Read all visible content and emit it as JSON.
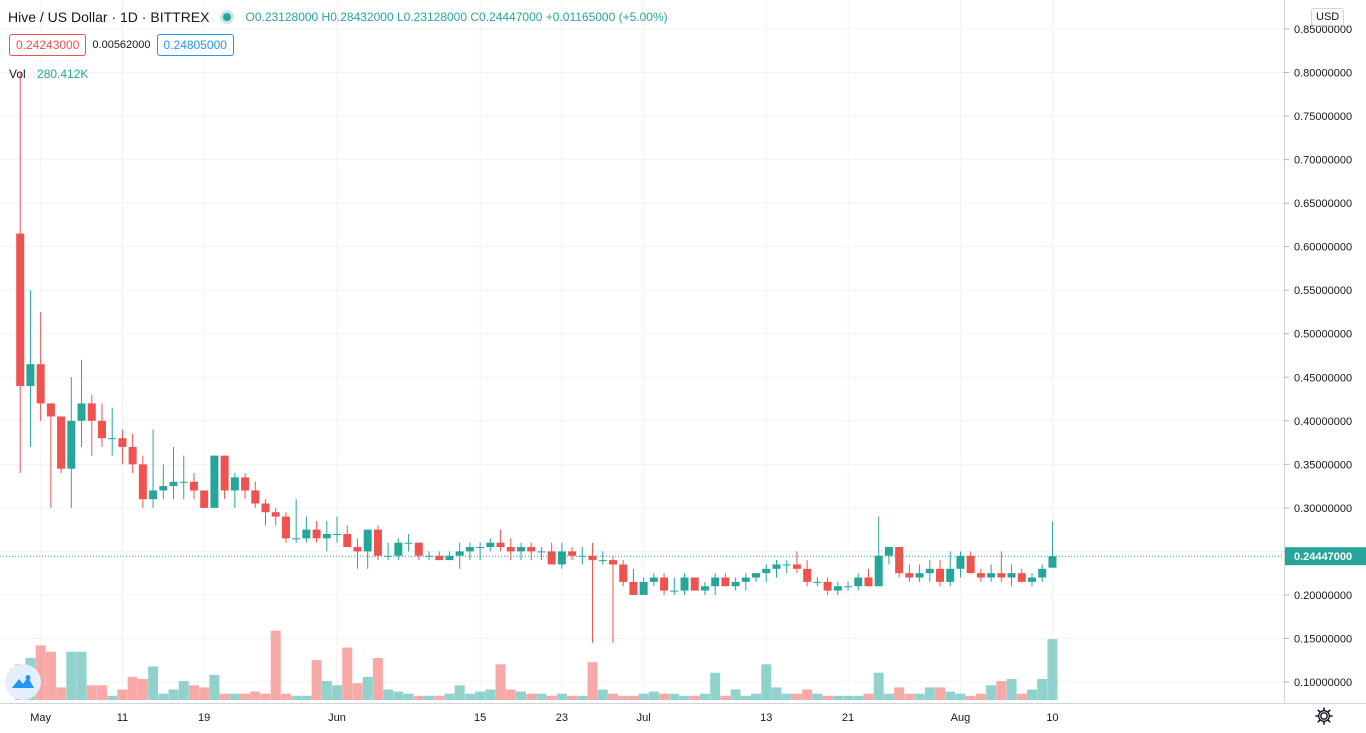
{
  "header": {
    "symbol_title": "Hive / US Dollar · 1D · BITTREX",
    "ohlc": "O0.23128000 H0.28432000 L0.23128000 C0.24447000 +0.01165000 (+5.00%)",
    "bid": "0.24243000",
    "spread": "0.00562000",
    "ask": "0.24805000",
    "vol_label": "Vol",
    "vol_value": "280.412K",
    "currency_button": "USD",
    "last_price_label": "0.24447000"
  },
  "colors": {
    "up": "#26a69a",
    "down": "#ef5350",
    "grid": "#f0f3fa",
    "axis": "#131722"
  },
  "icons": {
    "logo": "tradingview-logo-icon",
    "settings": "gear-icon"
  },
  "chart_data": {
    "type": "candlestick",
    "price_axis": {
      "ylim": [
        0.07,
        0.86
      ],
      "ticks": [
        0.85,
        0.8,
        0.75,
        0.7,
        0.65,
        0.6,
        0.55,
        0.5,
        0.45,
        0.4,
        0.35,
        0.3,
        0.25,
        0.2,
        0.15,
        0.1
      ],
      "tick_labels": [
        "0.85000000",
        "0.80000000",
        "0.75000000",
        "0.70000000",
        "0.65000000",
        "0.60000000",
        "0.55000000",
        "0.50000000",
        "0.45000000",
        "0.40000000",
        "0.35000000",
        "0.30000000",
        "0.25000000",
        "0.20000000",
        "0.15000000",
        "0.10000000"
      ]
    },
    "last_price": 0.24447,
    "time_axis": {
      "labels": [
        {
          "label": "May",
          "day": 3
        },
        {
          "label": "11",
          "day": 11
        },
        {
          "label": "19",
          "day": 19
        },
        {
          "label": "Jun",
          "day": 32
        },
        {
          "label": "15",
          "day": 46
        },
        {
          "label": "23",
          "day": 54
        },
        {
          "label": "Jul",
          "day": 62
        },
        {
          "label": "13",
          "day": 74
        },
        {
          "label": "21",
          "day": 82
        },
        {
          "label": "Aug",
          "day": 93
        },
        {
          "label": "10",
          "day": 102
        }
      ],
      "note": "day index counted from Apr 29"
    },
    "candles": [
      [
        0.615,
        0.8,
        0.34,
        0.44,
        0.115
      ],
      [
        0.44,
        0.55,
        0.37,
        0.465,
        0.13
      ],
      [
        0.465,
        0.525,
        0.4,
        0.42,
        0.16
      ],
      [
        0.42,
        0.42,
        0.3,
        0.405,
        0.145
      ],
      [
        0.405,
        0.405,
        0.34,
        0.345,
        0.06
      ],
      [
        0.345,
        0.45,
        0.3,
        0.4,
        0.145
      ],
      [
        0.4,
        0.47,
        0.37,
        0.42,
        0.145
      ],
      [
        0.42,
        0.43,
        0.36,
        0.4,
        0.065
      ],
      [
        0.4,
        0.42,
        0.37,
        0.38,
        0.065
      ],
      [
        0.38,
        0.415,
        0.36,
        0.38,
        0.04
      ],
      [
        0.38,
        0.39,
        0.35,
        0.37,
        0.055
      ],
      [
        0.37,
        0.385,
        0.34,
        0.35,
        0.085
      ],
      [
        0.35,
        0.36,
        0.3,
        0.31,
        0.08
      ],
      [
        0.31,
        0.39,
        0.3,
        0.32,
        0.11
      ],
      [
        0.32,
        0.35,
        0.31,
        0.325,
        0.045
      ],
      [
        0.325,
        0.37,
        0.31,
        0.33,
        0.055
      ],
      [
        0.33,
        0.36,
        0.31,
        0.33,
        0.075
      ],
      [
        0.33,
        0.34,
        0.31,
        0.32,
        0.065
      ],
      [
        0.32,
        0.32,
        0.3,
        0.3,
        0.06
      ],
      [
        0.3,
        0.36,
        0.3,
        0.36,
        0.09
      ],
      [
        0.36,
        0.36,
        0.31,
        0.32,
        0.045
      ],
      [
        0.32,
        0.34,
        0.3,
        0.335,
        0.045
      ],
      [
        0.335,
        0.34,
        0.31,
        0.32,
        0.045
      ],
      [
        0.32,
        0.33,
        0.3,
        0.305,
        0.05
      ],
      [
        0.305,
        0.31,
        0.28,
        0.295,
        0.045
      ],
      [
        0.295,
        0.3,
        0.28,
        0.29,
        0.195
      ],
      [
        0.29,
        0.295,
        0.26,
        0.265,
        0.045
      ],
      [
        0.265,
        0.31,
        0.26,
        0.265,
        0.04
      ],
      [
        0.265,
        0.29,
        0.26,
        0.275,
        0.04
      ],
      [
        0.275,
        0.285,
        0.26,
        0.265,
        0.125
      ],
      [
        0.265,
        0.285,
        0.25,
        0.27,
        0.075
      ],
      [
        0.27,
        0.29,
        0.26,
        0.27,
        0.065
      ],
      [
        0.27,
        0.28,
        0.26,
        0.255,
        0.155
      ],
      [
        0.255,
        0.265,
        0.23,
        0.25,
        0.07
      ],
      [
        0.25,
        0.275,
        0.23,
        0.275,
        0.085
      ],
      [
        0.275,
        0.28,
        0.24,
        0.245,
        0.13
      ],
      [
        0.245,
        0.26,
        0.24,
        0.245,
        0.055
      ],
      [
        0.245,
        0.265,
        0.24,
        0.26,
        0.05
      ],
      [
        0.26,
        0.27,
        0.25,
        0.26,
        0.045
      ],
      [
        0.26,
        0.26,
        0.24,
        0.245,
        0.04
      ],
      [
        0.245,
        0.25,
        0.24,
        0.245,
        0.04
      ],
      [
        0.245,
        0.25,
        0.24,
        0.24,
        0.04
      ],
      [
        0.24,
        0.25,
        0.24,
        0.245,
        0.045
      ],
      [
        0.245,
        0.26,
        0.23,
        0.25,
        0.065
      ],
      [
        0.25,
        0.26,
        0.24,
        0.255,
        0.045
      ],
      [
        0.255,
        0.26,
        0.24,
        0.255,
        0.05
      ],
      [
        0.255,
        0.265,
        0.25,
        0.26,
        0.055
      ],
      [
        0.26,
        0.275,
        0.25,
        0.255,
        0.115
      ],
      [
        0.255,
        0.265,
        0.24,
        0.25,
        0.055
      ],
      [
        0.25,
        0.26,
        0.24,
        0.255,
        0.05
      ],
      [
        0.255,
        0.26,
        0.24,
        0.25,
        0.045
      ],
      [
        0.25,
        0.255,
        0.24,
        0.25,
        0.045
      ],
      [
        0.25,
        0.26,
        0.24,
        0.235,
        0.04
      ],
      [
        0.235,
        0.26,
        0.23,
        0.25,
        0.045
      ],
      [
        0.25,
        0.255,
        0.24,
        0.245,
        0.04
      ],
      [
        0.245,
        0.255,
        0.235,
        0.245,
        0.04
      ],
      [
        0.245,
        0.26,
        0.145,
        0.24,
        0.12
      ],
      [
        0.24,
        0.25,
        0.235,
        0.24,
        0.055
      ],
      [
        0.24,
        0.245,
        0.145,
        0.235,
        0.045
      ],
      [
        0.235,
        0.24,
        0.21,
        0.215,
        0.04
      ],
      [
        0.215,
        0.23,
        0.2,
        0.2,
        0.04
      ],
      [
        0.2,
        0.22,
        0.2,
        0.215,
        0.045
      ],
      [
        0.215,
        0.225,
        0.21,
        0.22,
        0.05
      ],
      [
        0.22,
        0.225,
        0.2,
        0.205,
        0.045
      ],
      [
        0.205,
        0.22,
        0.2,
        0.205,
        0.045
      ],
      [
        0.205,
        0.225,
        0.2,
        0.22,
        0.04
      ],
      [
        0.22,
        0.22,
        0.205,
        0.205,
        0.04
      ],
      [
        0.205,
        0.215,
        0.2,
        0.21,
        0.045
      ],
      [
        0.21,
        0.225,
        0.2,
        0.22,
        0.095
      ],
      [
        0.22,
        0.225,
        0.21,
        0.21,
        0.04
      ],
      [
        0.21,
        0.22,
        0.205,
        0.215,
        0.055
      ],
      [
        0.215,
        0.225,
        0.205,
        0.22,
        0.04
      ],
      [
        0.22,
        0.225,
        0.215,
        0.225,
        0.045
      ],
      [
        0.225,
        0.235,
        0.215,
        0.23,
        0.115
      ],
      [
        0.23,
        0.24,
        0.22,
        0.235,
        0.06
      ],
      [
        0.235,
        0.24,
        0.225,
        0.235,
        0.045
      ],
      [
        0.235,
        0.25,
        0.225,
        0.23,
        0.045
      ],
      [
        0.23,
        0.24,
        0.21,
        0.215,
        0.055
      ],
      [
        0.215,
        0.22,
        0.21,
        0.215,
        0.045
      ],
      [
        0.215,
        0.22,
        0.2,
        0.205,
        0.04
      ],
      [
        0.205,
        0.215,
        0.2,
        0.21,
        0.04
      ],
      [
        0.21,
        0.215,
        0.205,
        0.21,
        0.04
      ],
      [
        0.21,
        0.225,
        0.205,
        0.22,
        0.04
      ],
      [
        0.22,
        0.23,
        0.21,
        0.21,
        0.045
      ],
      [
        0.21,
        0.29,
        0.21,
        0.245,
        0.095
      ],
      [
        0.245,
        0.255,
        0.235,
        0.255,
        0.045
      ],
      [
        0.255,
        0.255,
        0.22,
        0.225,
        0.06
      ],
      [
        0.225,
        0.235,
        0.215,
        0.22,
        0.045
      ],
      [
        0.22,
        0.235,
        0.215,
        0.225,
        0.045
      ],
      [
        0.225,
        0.24,
        0.215,
        0.23,
        0.06
      ],
      [
        0.23,
        0.24,
        0.21,
        0.215,
        0.06
      ],
      [
        0.215,
        0.25,
        0.21,
        0.23,
        0.05
      ],
      [
        0.23,
        0.25,
        0.22,
        0.245,
        0.045
      ],
      [
        0.245,
        0.25,
        0.23,
        0.225,
        0.04
      ],
      [
        0.225,
        0.23,
        0.215,
        0.22,
        0.045
      ],
      [
        0.22,
        0.235,
        0.215,
        0.225,
        0.065
      ],
      [
        0.225,
        0.25,
        0.215,
        0.22,
        0.075
      ],
      [
        0.22,
        0.235,
        0.21,
        0.225,
        0.08
      ],
      [
        0.225,
        0.23,
        0.215,
        0.215,
        0.045
      ],
      [
        0.215,
        0.225,
        0.21,
        0.22,
        0.055
      ],
      [
        0.22,
        0.235,
        0.215,
        0.23,
        0.08
      ],
      [
        0.23128,
        0.28432,
        0.23128,
        0.24447,
        0.175
      ]
    ]
  }
}
